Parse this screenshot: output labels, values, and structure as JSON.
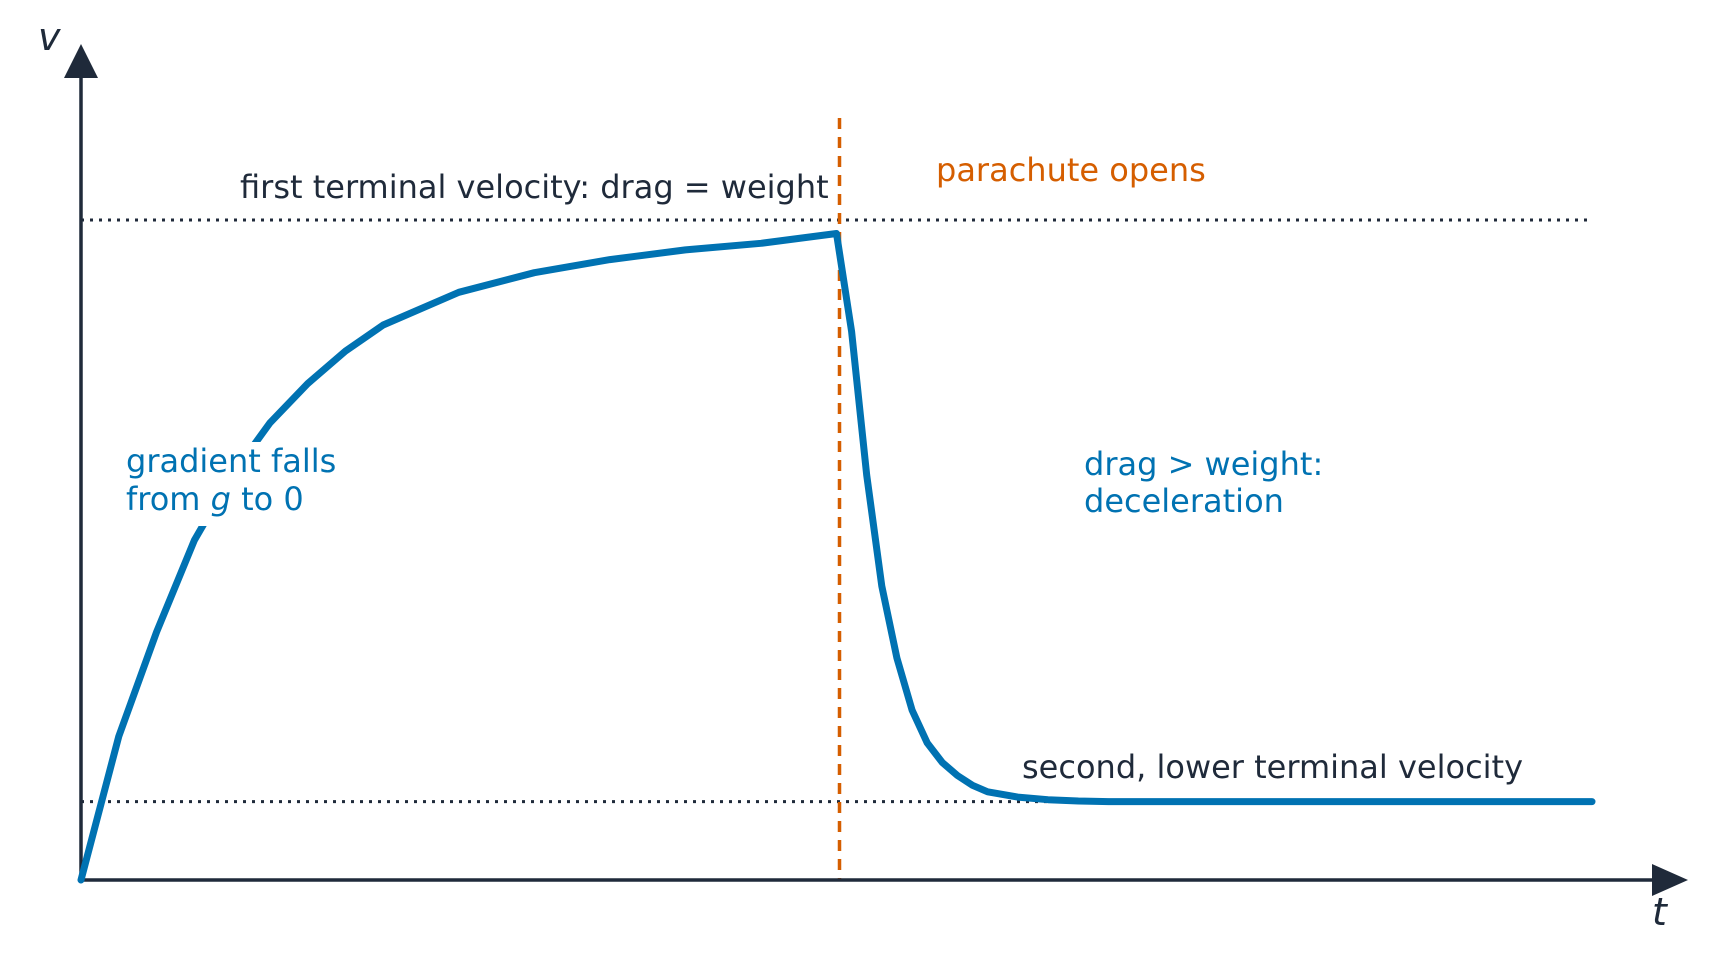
{
  "chart_data": {
    "type": "line",
    "title": "",
    "xlabel": "t",
    "ylabel": "v",
    "xlim": [
      0,
      10
    ],
    "ylim": [
      0,
      1
    ],
    "grid": false,
    "colors": {
      "axis": "#1f2a3a",
      "curve": "#0072b2",
      "event": "#d55e00",
      "reference": "#1f2a3a"
    },
    "series": [
      {
        "x": [
          0,
          0.25,
          0.5,
          0.75,
          1,
          1.25,
          1.5,
          1.75,
          2,
          2.5,
          3,
          3.5,
          4,
          4.5,
          5,
          5.1,
          5.2,
          5.3,
          5.4,
          5.5,
          5.6,
          5.7,
          5.8,
          5.9,
          6,
          6.2,
          6.4,
          6.6,
          6.8,
          7,
          7.5,
          8,
          8.5,
          9,
          9.5,
          10
        ],
        "y": [
          0,
          0.22,
          0.38,
          0.52,
          0.62,
          0.7,
          0.76,
          0.81,
          0.85,
          0.9,
          0.93,
          0.95,
          0.965,
          0.975,
          0.99,
          0.84,
          0.62,
          0.45,
          0.34,
          0.26,
          0.21,
          0.18,
          0.16,
          0.145,
          0.135,
          0.127,
          0.123,
          0.121,
          0.12,
          0.12,
          0.12,
          0.12,
          0.12,
          0.12,
          0.12,
          0.12
        ]
      }
    ],
    "reference_lines": [
      {
        "y": 1.0,
        "label": "first terminal velocity: drag = weight"
      },
      {
        "y": 0.12,
        "label": "second, lower terminal velocity"
      }
    ],
    "event": {
      "x": 5.0,
      "label": "parachute opens"
    },
    "annotations": {
      "rise_line1": "gradient falls",
      "rise_line2_pre": "from ",
      "rise_line2_var": "g",
      "rise_line2_post": " to 0",
      "decel_line1": "drag > weight:",
      "decel_line2": "deceleration"
    }
  }
}
